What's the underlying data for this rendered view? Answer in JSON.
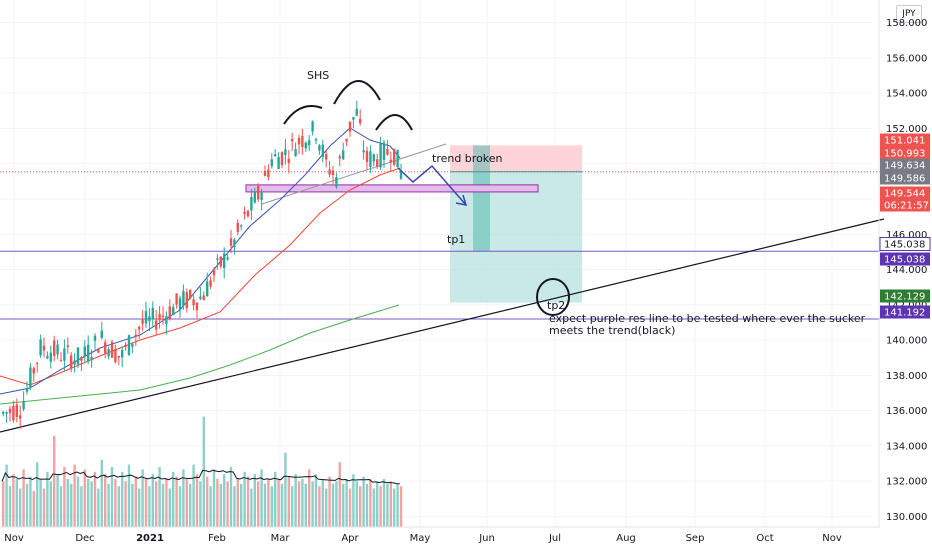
{
  "currency_label": "JPY",
  "colors": {
    "up": "#26a69a",
    "down": "#ef5350",
    "ma_fast": "#3f51b5",
    "ma_slow": "#f44336",
    "ma_long": "#4caf50",
    "trend": "#131722",
    "purple_level": "#7e57c2",
    "zone_fill": "#e1bee7",
    "zone_border": "#9c27b0",
    "target_green": "#b2dfdb",
    "stop_red": "#ffcdd2",
    "dotted_last": "#ef5350",
    "gray_tag": "#787b86",
    "purple_tag": "#5e35b1",
    "green_tag": "#2e7d32"
  },
  "annotations": {
    "shs": "SHS",
    "trend_broken": "trend broken",
    "tp1": "tp1",
    "tp2": "tp2",
    "note_line1": "expect purple res line to be tested where ever the sucker",
    "note_line2": "meets the trend(black)"
  },
  "chart_data": {
    "type": "candlestick",
    "title": "",
    "xlabel": "",
    "ylabel": "",
    "x_ticks": [
      "Nov",
      "Dec",
      "2021",
      "Feb",
      "Mar",
      "Apr",
      "May",
      "Jun",
      "Jul",
      "Aug",
      "Sep",
      "Oct",
      "Nov"
    ],
    "y_ticks": [
      130.0,
      132.0,
      134.0,
      136.0,
      138.0,
      140.0,
      142.0,
      144.0,
      146.0,
      148.0,
      150.0,
      152.0,
      154.0,
      156.0,
      158.0
    ],
    "y_range": [
      129.4,
      159.0
    ],
    "price_tags": [
      {
        "value": 151.041,
        "label": "151.041",
        "kind": "red"
      },
      {
        "value": 150.993,
        "label": "150.993",
        "kind": "red"
      },
      {
        "value": 149.634,
        "label": "149.634",
        "kind": "gray"
      },
      {
        "value": 149.586,
        "label": "149.586",
        "kind": "gray"
      },
      {
        "value": 149.544,
        "label": "149.544",
        "kind": "red"
      },
      {
        "value": 149.544,
        "label": "06:21:57",
        "kind": "red"
      },
      {
        "value": 145.038,
        "label": "145.038",
        "kind": "purple-outline"
      },
      {
        "value": 145.038,
        "label": "145.038",
        "kind": "purple"
      },
      {
        "value": 142.129,
        "label": "142.129",
        "kind": "green"
      },
      {
        "value": 141.192,
        "label": "141.192",
        "kind": "purple"
      }
    ],
    "levels": {
      "last_price": 149.544,
      "tp1": 145.038,
      "tp2_resistance": 141.192,
      "target_low": 142.129,
      "stop_high": 151.041,
      "entry": 149.634,
      "neckline_zone": [
        148.4,
        148.8
      ]
    },
    "candles_ohlc_sample": [
      [
        136.1,
        136.7,
        135.9,
        136.4
      ],
      [
        136.4,
        136.9,
        135.6,
        135.8
      ],
      [
        135.8,
        136.3,
        135.2,
        136.0
      ],
      [
        136.0,
        137.2,
        135.9,
        137.0
      ],
      [
        137.0,
        138.8,
        136.8,
        138.5
      ],
      [
        138.5,
        139.4,
        137.9,
        138.2
      ],
      [
        138.2,
        139.0,
        137.6,
        138.7
      ],
      [
        138.7,
        139.6,
        138.3,
        139.1
      ],
      [
        139.1,
        140.2,
        138.4,
        138.8
      ],
      [
        138.8,
        139.9,
        138.5,
        139.7
      ],
      [
        139.7,
        140.3,
        138.9,
        139.2
      ],
      [
        139.2,
        140.0,
        138.1,
        138.5
      ],
      [
        138.5,
        139.8,
        137.9,
        139.6
      ],
      [
        139.6,
        140.7,
        139.1,
        140.2
      ],
      [
        140.2,
        141.1,
        139.4,
        139.9
      ],
      [
        139.9,
        141.3,
        139.6,
        141.0
      ],
      [
        141.0,
        142.4,
        140.7,
        142.0
      ],
      [
        142.0,
        143.5,
        141.8,
        143.1
      ],
      [
        143.1,
        144.0,
        142.3,
        142.7
      ],
      [
        142.7,
        144.6,
        142.5,
        144.3
      ],
      [
        144.3,
        146.4,
        144.0,
        146.1
      ],
      [
        146.1,
        148.0,
        145.7,
        147.6
      ],
      [
        147.6,
        149.3,
        147.0,
        148.9
      ],
      [
        148.9,
        150.5,
        148.4,
        150.1
      ],
      [
        150.1,
        151.4,
        149.6,
        151.0
      ],
      [
        151.0,
        152.2,
        150.3,
        151.6
      ],
      [
        151.6,
        152.8,
        149.9,
        150.4
      ],
      [
        150.4,
        151.5,
        148.5,
        149.3
      ],
      [
        149.3,
        151.2,
        148.9,
        150.8
      ],
      [
        150.8,
        152.6,
        150.4,
        152.3
      ],
      [
        152.3,
        153.3,
        151.6,
        152.9
      ],
      [
        152.9,
        153.4,
        150.8,
        151.2
      ],
      [
        151.2,
        152.0,
        149.8,
        150.2
      ],
      [
        150.2,
        151.3,
        149.6,
        150.9
      ],
      [
        150.9,
        151.5,
        149.8,
        150.3
      ],
      [
        150.3,
        150.9,
        149.3,
        149.5
      ]
    ],
    "volume_range": [
      0,
      5.0
    ],
    "volume_sample": [
      1.9,
      2.6,
      1.7,
      2.2,
      2.0,
      1.6,
      2.4,
      1.8,
      2.1,
      1.5,
      2.7,
      2.0,
      1.6,
      2.3,
      1.9,
      3.8,
      2.2,
      1.7,
      2.5,
      2.0,
      1.8,
      2.6,
      2.1,
      1.7,
      2.4,
      2.0,
      1.9,
      2.3,
      1.6,
      2.8,
      2.2,
      1.8,
      2.5,
      2.0,
      1.7,
      2.3,
      1.9,
      2.6,
      1.8,
      2.1,
      1.6,
      2.4,
      2.0,
      1.7,
      2.2,
      1.9,
      2.5,
      1.8,
      2.0,
      1.6,
      2.3,
      2.1,
      1.7,
      2.4,
      2.0,
      1.8,
      2.6,
      2.2,
      1.9,
      4.6,
      2.1,
      1.7,
      2.4,
      2.0,
      1.8,
      2.2,
      1.9,
      2.5,
      1.7,
      2.0,
      1.8,
      2.3,
      2.1,
      1.6,
      2.2,
      1.9,
      2.4,
      1.8,
      2.0,
      1.7,
      2.3,
      2.0,
      1.8,
      3.1,
      2.1,
      1.7,
      2.2,
      1.9,
      2.0,
      1.8,
      2.4,
      1.9,
      2.2,
      1.7,
      2.0,
      1.6,
      2.1,
      1.8,
      1.9,
      2.7,
      1.8,
      2.0,
      1.6,
      2.2,
      1.9,
      1.7,
      2.1,
      1.8,
      2.0,
      1.6,
      1.9,
      1.7,
      2.0,
      1.8,
      1.9,
      1.6,
      1.8,
      1.7
    ]
  }
}
